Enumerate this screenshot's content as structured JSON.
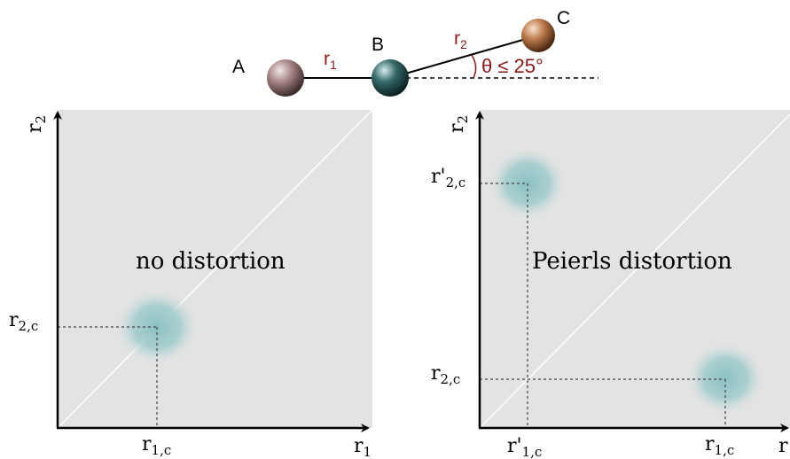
{
  "molecule": {
    "atoms": [
      "A",
      "B",
      "C"
    ],
    "bond_1_label": "r",
    "bond_1_sub": "1",
    "bond_2_label": "r",
    "bond_2_sub": "2",
    "angle_label": "θ ≤ 25°"
  },
  "left_panel": {
    "y_axis_label": "r",
    "y_axis_sub": "2",
    "x_axis_label": "r",
    "x_axis_sub": "1",
    "title": "no distortion",
    "y_tick_label": "r",
    "y_tick_sub": "2,c",
    "x_tick_label": "r",
    "x_tick_sub": "1,c"
  },
  "right_panel": {
    "y_axis_label": "r",
    "y_axis_sub": "2",
    "x_axis_label": "r",
    "title": "Peierls distortion",
    "y_tick_upper_label": "r'",
    "y_tick_upper_sub": "2,c",
    "y_tick_lower_label": "r",
    "y_tick_lower_sub": "2,c",
    "x_tick_left_label": "r'",
    "x_tick_left_sub": "1,c",
    "x_tick_right_label": "r",
    "x_tick_right_sub": "1,c"
  },
  "colors": {
    "panel_bg": "#e3e3e3",
    "blob": "#8fc3c5",
    "label_red": "#8a1a1a",
    "atom_a": "#a07f7f",
    "atom_b": "#2e5c5c",
    "atom_c": "#b8754a"
  }
}
